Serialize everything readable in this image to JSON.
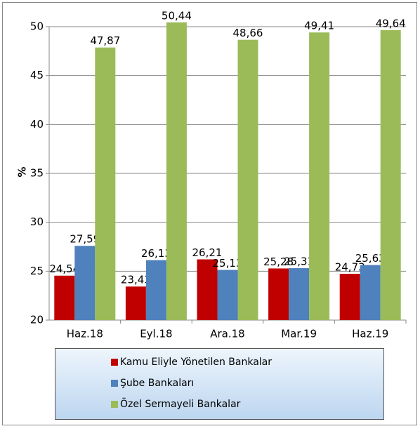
{
  "chart_data": {
    "type": "bar",
    "y_label": "%",
    "categories": [
      "Haz.18",
      "Eyl.18",
      "Ara.18",
      "Mar.19",
      "Haz.19"
    ],
    "series": [
      {
        "name": "Kamu Eliyle Yönetilen Bankalar",
        "color": "#c00000",
        "values": [
          24.54,
          23.43,
          26.21,
          25.28,
          24.73
        ],
        "value_labels": [
          "24,54",
          "23,43",
          "26,21",
          "25,28",
          "24,73"
        ]
      },
      {
        "name": "Şube Bankaları",
        "color": "#4f81bd",
        "values": [
          27.59,
          26.13,
          25.13,
          25.31,
          25.63
        ],
        "value_labels": [
          "27,59",
          "26,13",
          "25,13",
          "25,31",
          "25,63"
        ]
      },
      {
        "name": "Özel Sermayeli Bankalar",
        "color": "#9bbb59",
        "values": [
          47.87,
          50.44,
          48.66,
          49.41,
          49.64
        ],
        "value_labels": [
          "47,87",
          "50,44",
          "48,66",
          "49,41",
          "49,64"
        ]
      }
    ],
    "ylim": [
      20,
      50
    ],
    "yticks": [
      20,
      25,
      30,
      35,
      40,
      45,
      50
    ],
    "grid": true
  }
}
